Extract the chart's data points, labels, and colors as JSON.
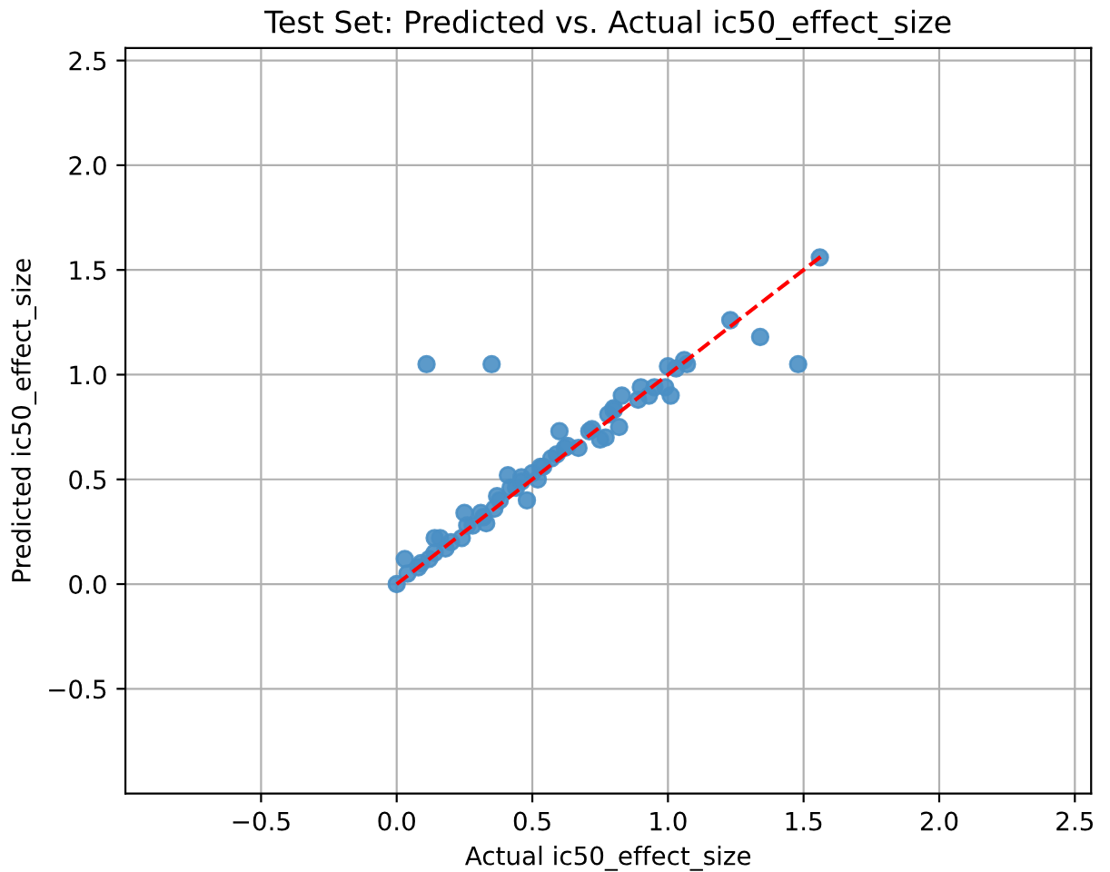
{
  "chart_data": {
    "type": "scatter",
    "title": "Test Set: Predicted vs. Actual ic50_effect_size",
    "xlabel": "Actual ic50_effect_size",
    "ylabel": "Predicted ic50_effect_size",
    "xlim": [
      -1.0,
      2.56
    ],
    "ylim": [
      -1.0,
      2.56
    ],
    "xticks": [
      {
        "value": -0.5,
        "label": "−0.5"
      },
      {
        "value": 0,
        "label": "0.0"
      },
      0.5,
      {
        "value": 1,
        "label": "1.0"
      },
      1.5,
      {
        "value": 2,
        "label": "2.0"
      },
      2.5
    ],
    "yticks": [
      {
        "value": -0.5,
        "label": "−0.5"
      },
      {
        "value": 0,
        "label": "0.0"
      },
      0.5,
      {
        "value": 1,
        "label": "1.0"
      },
      1.5,
      {
        "value": 2,
        "label": "2.0"
      },
      2.5
    ],
    "grid": true,
    "marker": "circle",
    "series": [
      {
        "color": "#4a8fc4",
        "x": [
          0.11,
          0.35,
          1.23,
          1.34,
          1.48,
          1.56,
          0.99,
          1.01,
          1.07,
          1.06,
          1.03,
          1.0,
          0.93,
          0.95,
          0.9,
          0.89,
          0.83,
          0.82,
          0.77,
          0.75,
          0.72,
          0.78,
          0.8,
          0.6,
          0.67,
          0.63,
          0.59,
          0.57,
          0.53,
          0.52,
          0.48,
          0.5,
          0.46,
          0.41,
          0.42,
          0.37,
          0.36,
          0.33,
          0.31,
          0.25,
          0.28,
          0.24,
          0.18,
          0.16,
          0.14,
          0.12,
          0.08,
          0.03,
          0.04,
          0.0,
          0.2,
          0.09,
          0.14,
          0.26,
          0.32,
          0.38,
          0.44,
          0.46,
          0.54,
          0.62,
          0.71,
          0.8
        ],
        "values": [
          1.05,
          1.05,
          1.26,
          1.18,
          1.05,
          1.56,
          0.94,
          0.9,
          1.05,
          1.07,
          1.03,
          1.04,
          0.9,
          0.94,
          0.94,
          0.88,
          0.9,
          0.75,
          0.7,
          0.69,
          0.74,
          0.81,
          0.84,
          0.73,
          0.65,
          0.66,
          0.62,
          0.6,
          0.56,
          0.5,
          0.4,
          0.53,
          0.51,
          0.52,
          0.46,
          0.42,
          0.36,
          0.29,
          0.34,
          0.34,
          0.28,
          0.22,
          0.17,
          0.22,
          0.22,
          0.12,
          0.08,
          0.12,
          0.05,
          0.0,
          0.2,
          0.1,
          0.15,
          0.28,
          0.32,
          0.4,
          0.46,
          0.49,
          0.56,
          0.65,
          0.73,
          0.83
        ]
      },
      {
        "type": "line",
        "color": "#ff0000",
        "line_style": "dashed",
        "marker": "none",
        "x": [
          0.0,
          1.57
        ],
        "values": [
          0.0,
          1.57
        ]
      }
    ]
  }
}
